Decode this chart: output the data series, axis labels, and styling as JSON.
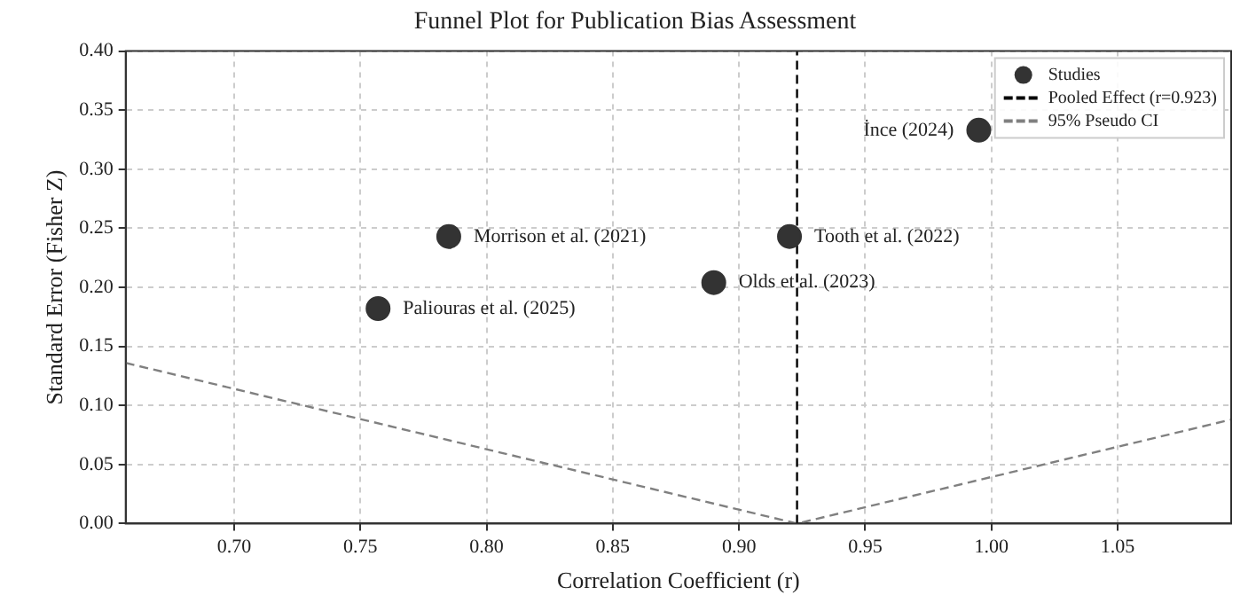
{
  "chart_data": {
    "type": "scatter",
    "title": "Funnel Plot for Publication Bias Assessment",
    "xlabel": "Correlation Coefficient (r)",
    "ylabel": "Standard Error (Fisher Z)",
    "series": [
      {
        "name": "Studies",
        "type": "scatter",
        "color": "#333333",
        "marker": "circle",
        "x": [
          0.757,
          0.785,
          0.89,
          0.92,
          0.995
        ],
        "values": [
          0.182,
          0.243,
          0.204,
          0.243,
          0.333
        ]
      },
      {
        "name": "Pooled Effect (r=0.923)",
        "type": "line",
        "color": "#000000",
        "line_style": "dashed",
        "marker": "none",
        "x": [
          0.923,
          0.923
        ],
        "values": [
          0,
          0.4
        ]
      },
      {
        "name": "95% Pseudo CI",
        "type": "line",
        "color": "#808080",
        "line_style": "dashed",
        "marker": "none",
        "x": [
          0.657,
          0.923,
          1.095
        ],
        "values": [
          0.136,
          0,
          0.088
        ]
      }
    ],
    "annotations": [
      {
        "text": "Paliouras et al. (2025)",
        "x": 0.757,
        "y": 0.182
      },
      {
        "text": "Morrison et al. (2021)",
        "x": 0.785,
        "y": 0.243
      },
      {
        "text": "Olds et al. (2023)",
        "x": 0.89,
        "y": 0.204
      },
      {
        "text": "Tooth et al. (2022)",
        "x": 0.92,
        "y": 0.243
      },
      {
        "text": "İnce (2024)",
        "x": 0.995,
        "y": 0.333
      }
    ],
    "xlim": [
      0.657,
      1.095
    ],
    "xticks": [
      {
        "value": 0.7,
        "label": "0.70"
      },
      {
        "value": 0.75,
        "label": "0.75"
      },
      {
        "value": 0.8,
        "label": "0.80"
      },
      {
        "value": 0.85,
        "label": "0.85"
      },
      {
        "value": 0.9,
        "label": "0.90"
      },
      {
        "value": 0.95,
        "label": "0.95"
      },
      {
        "value": 1.0,
        "label": "1.00"
      },
      {
        "value": 1.05,
        "label": "1.05"
      }
    ],
    "ylim": [
      0,
      0.4
    ],
    "yticks": [
      {
        "value": 0,
        "label": "0.00"
      },
      {
        "value": 0.05,
        "label": "0.05"
      },
      {
        "value": 0.1,
        "label": "0.10"
      },
      {
        "value": 0.15,
        "label": "0.15"
      },
      {
        "value": 0.2,
        "label": "0.20"
      },
      {
        "value": 0.25,
        "label": "0.25"
      },
      {
        "value": 0.3,
        "label": "0.30"
      },
      {
        "value": 0.35,
        "label": "0.35"
      },
      {
        "value": 0.4,
        "label": "0.40"
      }
    ],
    "grid": true,
    "legend": "top right"
  }
}
